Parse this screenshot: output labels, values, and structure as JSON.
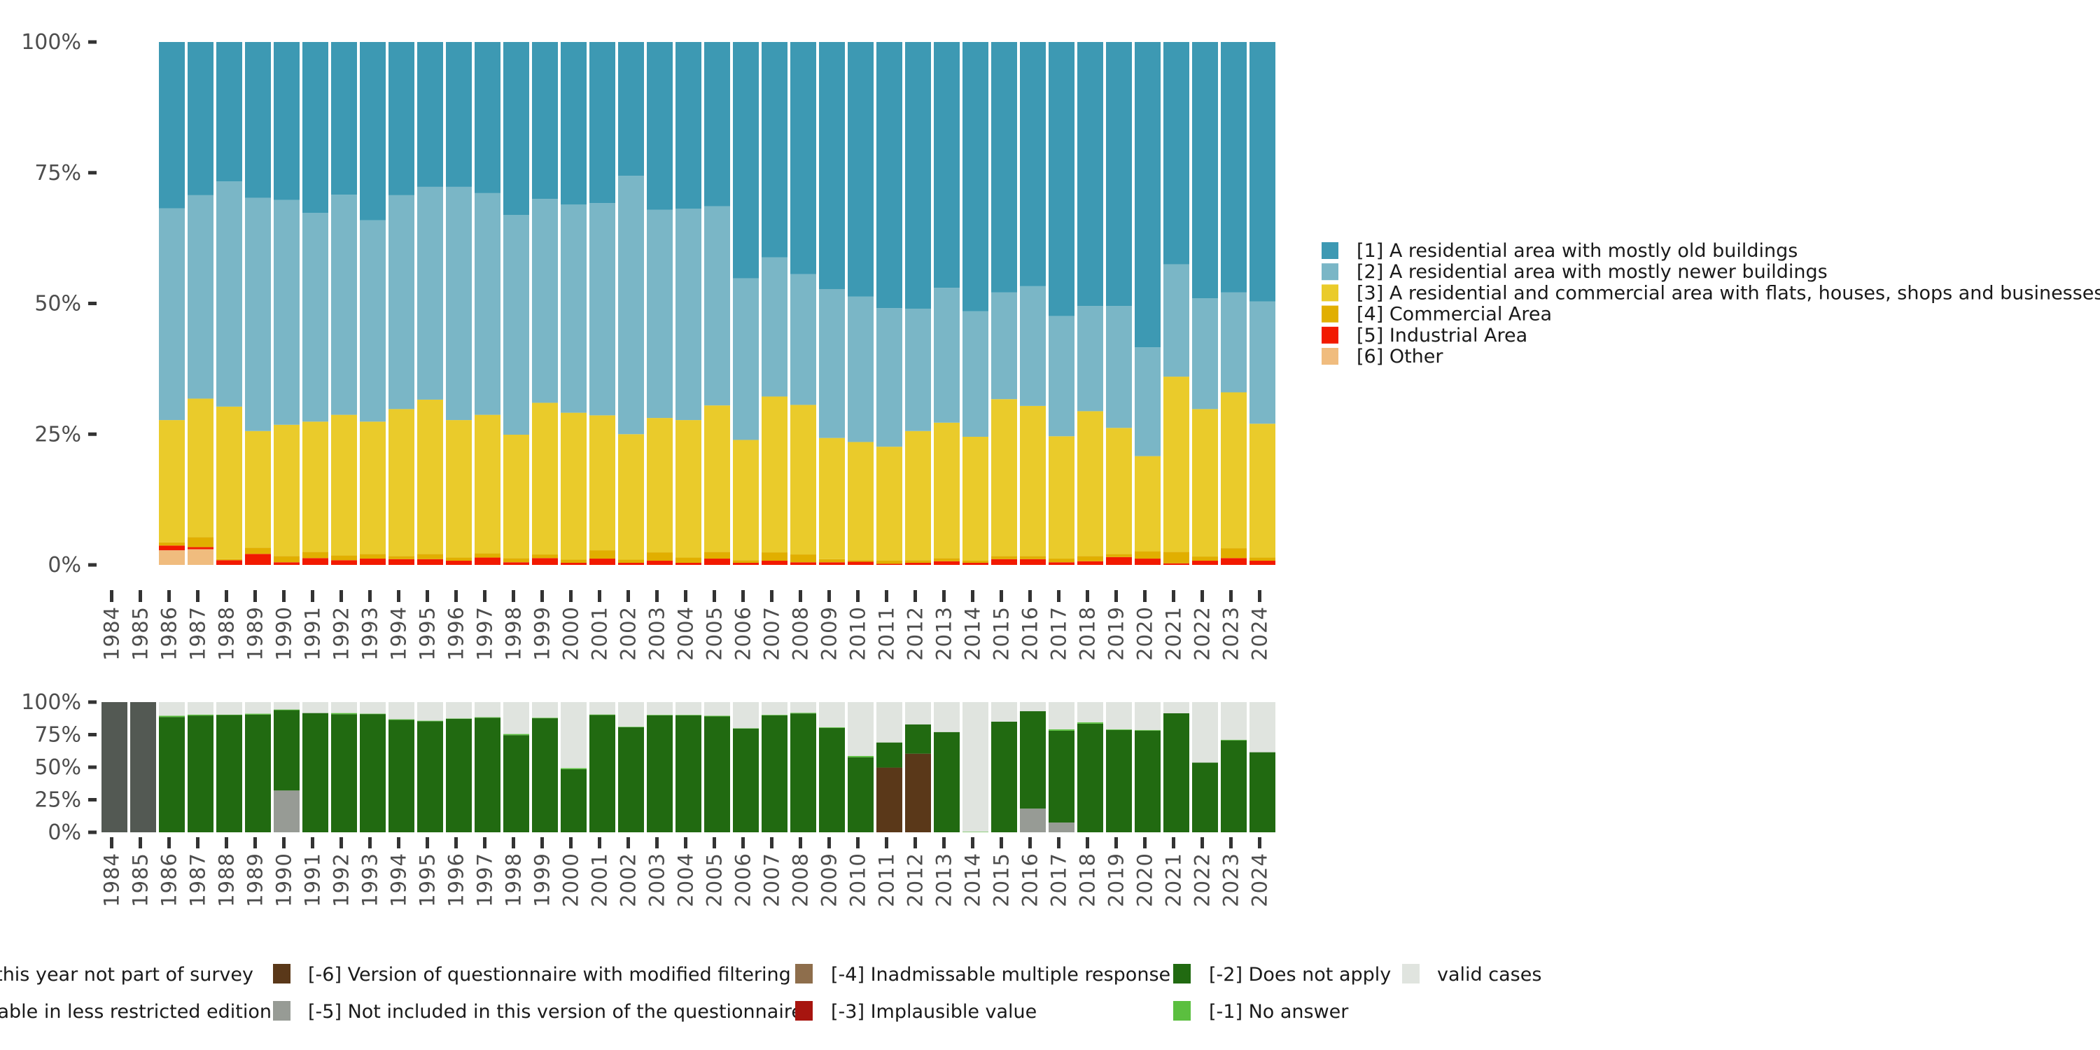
{
  "chart_data": [
    {
      "type": "bar",
      "stacked": true,
      "normalized": true,
      "title": "",
      "xlabel": "",
      "ylabel": "",
      "ylim": [
        0,
        100
      ],
      "y_ticks": [
        "0%",
        "25%",
        "50%",
        "75%",
        "100%"
      ],
      "y_tick_values": [
        0,
        25,
        50,
        75,
        100
      ],
      "categories": [
        "1984",
        "1985",
        "1986",
        "1987",
        "1988",
        "1989",
        "1990",
        "1991",
        "1992",
        "1993",
        "1994",
        "1995",
        "1996",
        "1997",
        "1998",
        "1999",
        "2000",
        "2001",
        "2002",
        "2003",
        "2004",
        "2005",
        "2006",
        "2007",
        "2008",
        "2009",
        "2010",
        "2011",
        "2012",
        "2013",
        "2014",
        "2015",
        "2016",
        "2017",
        "2018",
        "2019",
        "2020",
        "2021",
        "2022",
        "2023",
        "2024"
      ],
      "legend_position": "right",
      "grid": false,
      "series": [
        {
          "name": "[1] A residential area with mostly old buildings",
          "color": "#3d99b3",
          "values": [
            null,
            null,
            31.8,
            29.3,
            26.7,
            29.8,
            30.2,
            32.7,
            29.2,
            34.1,
            29.3,
            27.7,
            27.7,
            28.9,
            33.1,
            30.0,
            31.1,
            30.8,
            25.6,
            32.1,
            31.9,
            31.4,
            45.2,
            41.2,
            44.4,
            47.3,
            48.7,
            50.9,
            51.0,
            47.0,
            51.5,
            47.9,
            46.7,
            52.4,
            50.5,
            50.5,
            58.4,
            42.5,
            49.0,
            47.9,
            49.6
          ]
        },
        {
          "name": "[2] A residential area with mostly newer buildings",
          "color": "#7ab6c6",
          "values": [
            null,
            null,
            40.5,
            38.9,
            43.1,
            44.6,
            43.0,
            39.9,
            42.1,
            38.5,
            40.9,
            40.7,
            44.6,
            42.4,
            42.0,
            39.0,
            39.8,
            40.6,
            49.4,
            39.8,
            40.4,
            38.1,
            30.9,
            26.6,
            25.0,
            28.5,
            27.8,
            26.5,
            23.4,
            25.8,
            24.0,
            20.4,
            22.9,
            23.0,
            20.1,
            23.3,
            20.8,
            21.5,
            21.2,
            19.1,
            23.4
          ]
        },
        {
          "name": "[3] A residential and commercial area with flats, houses, shops and businesses",
          "color": "#eacb2b",
          "values": [
            null,
            null,
            23.4,
            26.5,
            29.2,
            22.3,
            25.1,
            24.9,
            26.9,
            25.3,
            28.1,
            29.5,
            26.3,
            26.5,
            23.6,
            29.0,
            28.1,
            25.8,
            24.0,
            25.7,
            26.3,
            28.0,
            23.0,
            29.8,
            28.6,
            23.2,
            22.6,
            21.8,
            24.7,
            25.9,
            23.7,
            30.0,
            28.7,
            23.4,
            27.7,
            24.1,
            18.2,
            33.5,
            28.2,
            29.8,
            25.6
          ]
        },
        {
          "name": "[4] Commercial Area",
          "color": "#e1af00",
          "values": [
            null,
            null,
            0.6,
            1.9,
            0.2,
            1.2,
            1.2,
            1.2,
            0.9,
            0.9,
            0.6,
            1.0,
            0.6,
            0.8,
            0.8,
            0.7,
            0.6,
            1.6,
            0.6,
            1.6,
            1.0,
            1.3,
            0.5,
            1.6,
            1.5,
            0.6,
            0.3,
            0.6,
            0.5,
            0.6,
            0.4,
            0.6,
            0.6,
            0.7,
            1.0,
            0.6,
            1.4,
            2.2,
            0.8,
            1.9,
            0.6
          ]
        },
        {
          "name": "[5] Industrial Area",
          "color": "#f21a00",
          "values": [
            null,
            null,
            0.9,
            0.4,
            0.9,
            2.1,
            0.5,
            1.3,
            0.9,
            1.2,
            1.1,
            1.1,
            0.8,
            1.4,
            0.5,
            1.3,
            0.4,
            1.2,
            0.4,
            0.8,
            0.4,
            1.2,
            0.4,
            0.8,
            0.5,
            0.5,
            0.6,
            0.2,
            0.4,
            0.7,
            0.4,
            1.1,
            1.1,
            0.5,
            0.7,
            1.5,
            1.2,
            0.3,
            0.8,
            1.3,
            0.8
          ]
        },
        {
          "name": "[6] Other",
          "color": "#f0bc7e",
          "values": [
            null,
            null,
            2.8,
            3.0,
            0,
            0,
            0,
            0,
            0,
            0,
            0,
            0,
            0,
            0,
            0,
            0,
            0,
            0,
            0,
            0,
            0,
            0,
            0,
            0,
            0,
            0,
            0,
            0,
            0,
            0,
            0,
            0,
            0,
            0,
            0,
            0,
            0,
            0,
            0,
            0,
            0
          ]
        }
      ]
    },
    {
      "type": "bar",
      "stacked": true,
      "normalized": true,
      "title": "",
      "xlabel": "",
      "ylabel": "",
      "ylim": [
        0,
        100
      ],
      "y_ticks": [
        "0%",
        "25%",
        "50%",
        "75%",
        "100%"
      ],
      "y_tick_values": [
        0,
        25,
        50,
        75,
        100
      ],
      "categories": [
        "1984",
        "1985",
        "1986",
        "1987",
        "1988",
        "1989",
        "1990",
        "1991",
        "1992",
        "1993",
        "1994",
        "1995",
        "1996",
        "1997",
        "1998",
        "1999",
        "2000",
        "2001",
        "2002",
        "2003",
        "2004",
        "2005",
        "2006",
        "2007",
        "2008",
        "2009",
        "2010",
        "2011",
        "2012",
        "2013",
        "2014",
        "2015",
        "2016",
        "2017",
        "2018",
        "2019",
        "2020",
        "2021",
        "2022",
        "2023",
        "2024"
      ],
      "legend_position": "bottom",
      "grid": false,
      "series": [
        {
          "name": "valid cases",
          "color": "#e0e4df",
          "values": [
            0,
            0,
            10.5,
            9.6,
            9.6,
            8.9,
            5.7,
            8.4,
            8.4,
            8.9,
            13.2,
            14.3,
            12.5,
            11.6,
            24.5,
            12.0,
            50.7,
            9.5,
            18.9,
            9.8,
            9.8,
            10.5,
            20.0,
            9.8,
            8.2,
            19.4,
            41.4,
            31.0,
            17.1,
            23.0,
            99.6,
            15.0,
            7.0,
            20.9,
            15.5,
            20.9,
            21.4,
            8.6,
            46.5,
            28.9,
            38.5
          ]
        },
        {
          "name": "[-1] No answer",
          "color": "#5bbf3f",
          "values": [
            0,
            0,
            0.9,
            0.7,
            0.3,
            0.7,
            0.5,
            0,
            0.9,
            0.3,
            0.5,
            0.4,
            0.3,
            0.4,
            0.9,
            0.4,
            0.9,
            0.4,
            0.4,
            0.4,
            0.4,
            0.5,
            0.3,
            0.4,
            0.5,
            0.5,
            1.0,
            0,
            0,
            0,
            0.4,
            0,
            0,
            1.1,
            1.1,
            0.5,
            0.5,
            0,
            0,
            0.5,
            0
          ]
        },
        {
          "name": "[-2] Does not apply",
          "color": "#216a11",
          "values": [
            0,
            0,
            88.6,
            89.7,
            90.1,
            90.4,
            61.7,
            91.6,
            90.7,
            90.8,
            86.3,
            85.3,
            87.2,
            88.0,
            74.6,
            87.6,
            48.4,
            90.1,
            80.7,
            89.8,
            89.8,
            89.0,
            79.7,
            89.8,
            91.3,
            80.1,
            57.6,
            19.3,
            22.5,
            77.0,
            0,
            85.0,
            74.8,
            70.5,
            83.4,
            78.6,
            78.1,
            91.4,
            53.5,
            70.6,
            61.5
          ]
        },
        {
          "name": "[-3] Implausible value",
          "color": "#a7150f",
          "values": [
            0,
            0,
            0,
            0,
            0,
            0,
            0,
            0,
            0,
            0,
            0,
            0,
            0,
            0,
            0,
            0,
            0,
            0,
            0,
            0,
            0,
            0,
            0,
            0,
            0,
            0,
            0,
            0,
            0,
            0,
            0,
            0,
            0,
            0,
            0,
            0,
            0,
            0,
            0,
            0,
            0
          ]
        },
        {
          "name": "[-4] Inadmissable multiple response",
          "color": "#8e6e4c",
          "values": [
            0,
            0,
            0,
            0,
            0,
            0,
            0,
            0,
            0,
            0,
            0,
            0,
            0,
            0,
            0,
            0,
            0,
            0,
            0,
            0,
            0,
            0,
            0,
            0,
            0,
            0,
            0,
            0,
            0,
            0,
            0,
            0,
            0,
            0,
            0,
            0,
            0,
            0,
            0,
            0,
            0
          ]
        },
        {
          "name": "[-5] Not included in this version of the questionnaire",
          "color": "#979b95",
          "values": [
            0,
            0,
            0,
            0,
            0,
            0,
            32.1,
            0,
            0,
            0,
            0,
            0,
            0,
            0,
            0,
            0,
            0,
            0,
            0,
            0,
            0,
            0,
            0,
            0,
            0,
            0,
            0,
            0,
            0,
            0,
            0,
            0,
            18.2,
            7.5,
            0,
            0,
            0,
            0,
            0,
            0,
            0
          ]
        },
        {
          "name": "[-6] Version of questionnaire with modified filtering",
          "color": "#5a3819",
          "values": [
            0,
            0,
            0,
            0,
            0,
            0,
            0,
            0,
            0,
            0,
            0,
            0,
            0,
            0,
            0,
            0,
            0,
            0,
            0,
            0,
            0,
            0,
            0,
            0,
            0,
            0,
            0,
            49.7,
            60.4,
            0,
            0,
            0,
            0,
            0,
            0,
            0,
            0,
            0,
            0,
            0,
            0
          ]
        },
        {
          "name": "this year not part of survey",
          "color": "#535953",
          "values": [
            100,
            100,
            0,
            0,
            0,
            0,
            0,
            0,
            0,
            0,
            0,
            0,
            0,
            0,
            0,
            0,
            0,
            0,
            0,
            0,
            0,
            0,
            0,
            0,
            0,
            0,
            0,
            0,
            0,
            0,
            0,
            0,
            0,
            0,
            0,
            0,
            0,
            0,
            0,
            0,
            0
          ]
        }
      ]
    }
  ],
  "top_legend": [
    {
      "label": "[1] A residential area with mostly old buildings",
      "color": "#3d99b3"
    },
    {
      "label": "[2] A residential area with mostly newer buildings",
      "color": "#7ab6c6"
    },
    {
      "label": "[3] A residential and commercial area with flats, houses, shops and businesses",
      "color": "#eacb2b"
    },
    {
      "label": "[4] Commercial Area",
      "color": "#e1af00"
    },
    {
      "label": "[5] Industrial Area",
      "color": "#f21a00"
    },
    {
      "label": "[6] Other",
      "color": "#f0bc7e"
    }
  ],
  "bottom_legend": {
    "rows": [
      [
        {
          "label": "this year not part of survey",
          "color": null
        },
        {
          "label": "[-6] Version of questionnaire with modified filtering",
          "color": "#5a3819"
        },
        {
          "label": "[-4] Inadmissable multiple response",
          "color": "#8e6e4c"
        },
        {
          "label": "[-2] Does not apply",
          "color": "#216a11"
        },
        {
          "label": "valid cases",
          "color": "#e0e4df"
        }
      ],
      [
        {
          "label": "able in less restricted edition",
          "color": null
        },
        {
          "label": "[-5] Not included in this version of the questionnaire",
          "color": "#979b95"
        },
        {
          "label": "[-3] Implausible value",
          "color": "#a7150f"
        },
        {
          "label": "[-1] No answer",
          "color": "#5bbf3f"
        },
        null
      ]
    ]
  }
}
